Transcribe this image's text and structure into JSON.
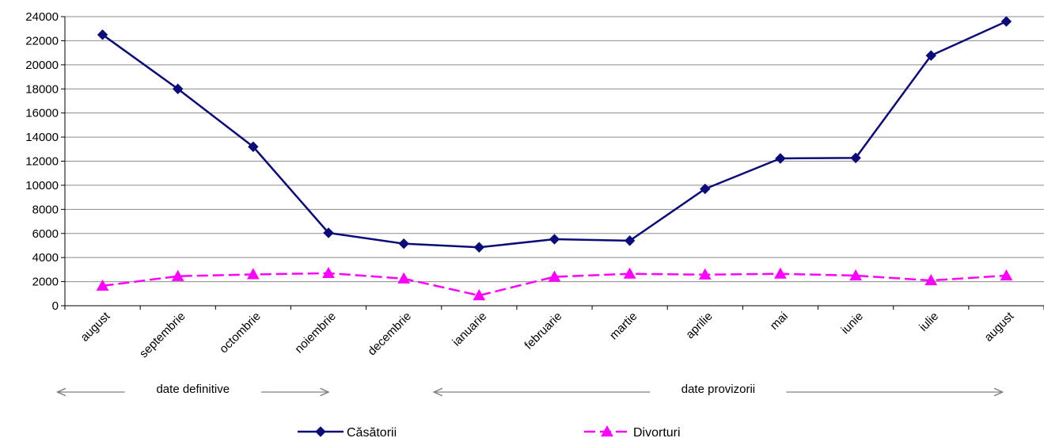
{
  "chart_data": {
    "type": "line",
    "categories": [
      "august",
      "septembrie",
      "octombrie",
      "noiembrie",
      "decembrie",
      "ianuarie",
      "februarie",
      "martie",
      "aprilie",
      "mai",
      "iunie",
      "iulie",
      "august"
    ],
    "series": [
      {
        "name": "Căsătorii",
        "color": "#0b0b7a",
        "marker": "diamond",
        "line_style": "solid",
        "values": [
          22500,
          18000,
          13200,
          6050,
          5150,
          4850,
          5520,
          5400,
          9700,
          12230,
          12270,
          20770,
          23600
        ]
      },
      {
        "name": "Divorturi",
        "color": "#ff00ff",
        "marker": "triangle",
        "line_style": "dashed",
        "values": [
          1650,
          2450,
          2600,
          2700,
          2250,
          850,
          2400,
          2650,
          2580,
          2650,
          2500,
          2100,
          2500
        ]
      }
    ],
    "ylim": [
      0,
      24000
    ],
    "y_ticks": [
      "0",
      "2000",
      "4000",
      "6000",
      "8000",
      "10000",
      "12000",
      "14000",
      "16000",
      "18000",
      "20000",
      "22000",
      "24000"
    ],
    "grid": "horizontal",
    "annotations": [
      {
        "text": "date definitive",
        "from_category": 0,
        "to_category": 3
      },
      {
        "text": "date provizorii",
        "from_category": 5,
        "to_category": 12
      }
    ],
    "legend_position": "bottom"
  }
}
